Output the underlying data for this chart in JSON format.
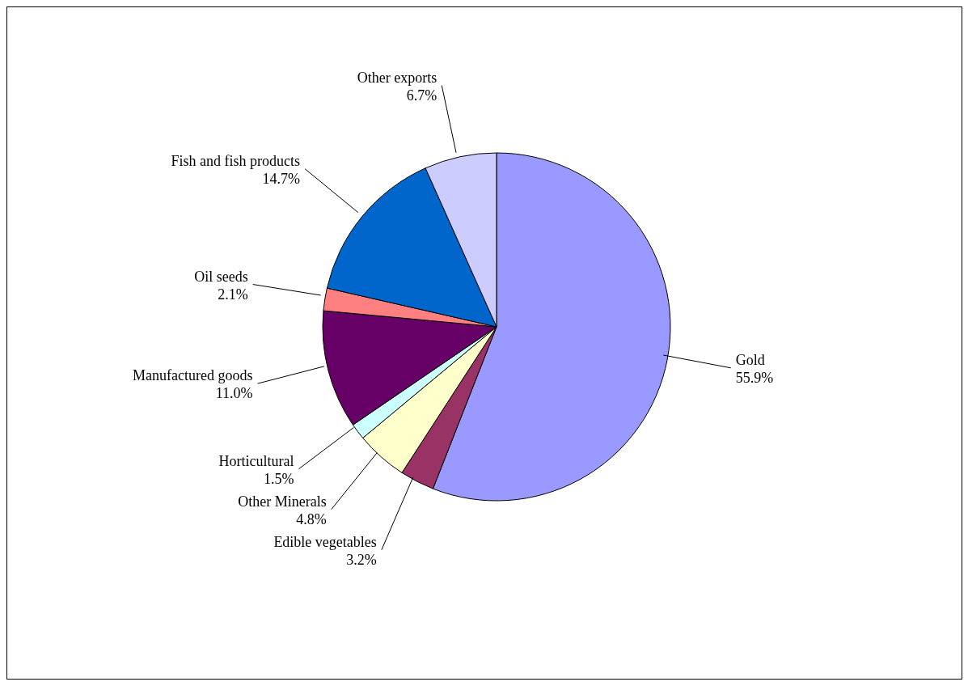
{
  "chart_data": {
    "type": "pie",
    "categories": [
      "Gold",
      "Edible vegetables",
      "Other Minerals",
      "Horticultural",
      "Manufactured goods",
      "Oil seeds",
      "Fish and fish products",
      "Other exports"
    ],
    "values": [
      55.9,
      3.2,
      4.8,
      1.5,
      11.0,
      2.1,
      14.7,
      6.7
    ],
    "value_labels": [
      "55.9%",
      "3.2%",
      "4.8%",
      "1.5%",
      "11.0%",
      "2.1%",
      "14.7%",
      "6.7%"
    ],
    "colors": [
      "#9999ff",
      "#993366",
      "#ffffcc",
      "#ccffff",
      "#660066",
      "#ff8080",
      "#0066cc",
      "#ccccff"
    ],
    "legend": false
  }
}
